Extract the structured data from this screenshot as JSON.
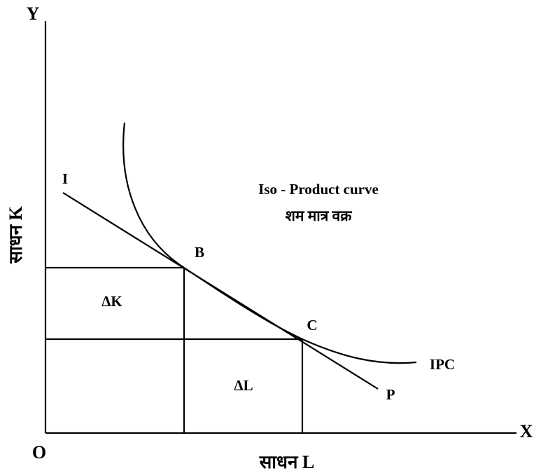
{
  "axes": {
    "y_label": "Y",
    "x_label": "X",
    "origin_label": "O",
    "y_title": "साधन K",
    "x_title": "साधन L"
  },
  "points": {
    "line_start": "I",
    "tangent_b": "B",
    "tangent_c": "C",
    "line_end": "P"
  },
  "curve": {
    "label": "IPC",
    "title": "Iso - Product curve",
    "title_hindi": "शम मात्र वक्र"
  },
  "deltas": {
    "k": "ΔK",
    "l": "ΔL"
  }
}
